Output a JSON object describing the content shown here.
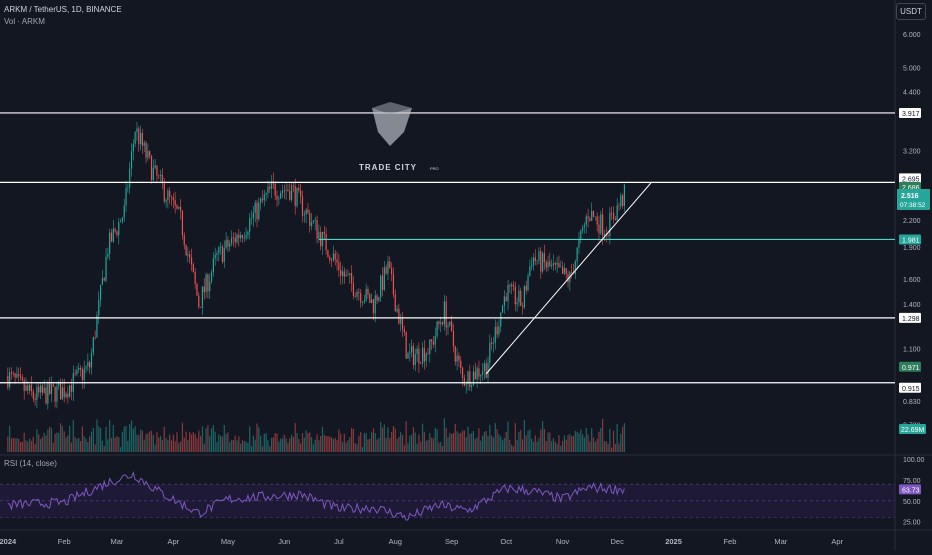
{
  "header": {
    "symbol_line": "ARKM / TetherUS, 1D, BINANCE",
    "volume_label": "Vol · ARKM",
    "currency_button": "USDT"
  },
  "watermark": {
    "brand": "TRADE CITY",
    "brand_suffix": "PRO"
  },
  "price_axis": {
    "scale": "log",
    "tick_labels": [
      "6.000",
      "5.000",
      "4.400",
      "3.200",
      "2.200",
      "1.900",
      "1.600",
      "1.400",
      "1.100",
      "0.830",
      "0.730"
    ],
    "level_labels": [
      {
        "text": "3.917",
        "style": "white"
      },
      {
        "text": "2.695",
        "style": "white"
      },
      {
        "text": "2.686",
        "style": "green"
      },
      {
        "text": "1.981",
        "style": "teal"
      },
      {
        "text": "1.298",
        "style": "white"
      },
      {
        "text": "0.971",
        "style": "green"
      },
      {
        "text": "0.915",
        "style": "white"
      }
    ],
    "last_price": {
      "price": "2.516",
      "countdown": "07:38:52"
    },
    "volume_label": "22.69M"
  },
  "rsi": {
    "label": "RSI (14, close)",
    "tick_labels": [
      "100.00",
      "75.00",
      "50.00",
      "25.00"
    ],
    "value_label": "63.73"
  },
  "time_axis": {
    "labels": [
      "2024",
      "Feb",
      "Mar",
      "Apr",
      "May",
      "Jun",
      "Jul",
      "Aug",
      "Sep",
      "Oct",
      "Nov",
      "Dec",
      "2025",
      "Feb",
      "Mar",
      "Apr"
    ],
    "bold": [
      "2024",
      "2025"
    ]
  },
  "colors": {
    "background": "#131722",
    "up": "#26a69a",
    "down": "#ef5350",
    "level_line": "#ffffff",
    "teal_line": "#4fd1c5",
    "rsi_line": "#7e57c2",
    "rsi_band": "#2a2449"
  },
  "chart_data": {
    "type": "candlestick",
    "y_scale": "log",
    "horizontal_levels": [
      3.917,
      2.695,
      1.981,
      1.298,
      0.915
    ],
    "trendline": {
      "from": {
        "date": "2024-09-20",
        "price": 0.96
      },
      "to": {
        "date": "2024-12-20",
        "price": 2.7
      }
    },
    "price_path": [
      {
        "date": "2024-01-01",
        "price": 0.95
      },
      {
        "date": "2024-01-15",
        "price": 0.85
      },
      {
        "date": "2024-02-01",
        "price": 0.88
      },
      {
        "date": "2024-02-15",
        "price": 1.0
      },
      {
        "date": "2024-02-25",
        "price": 1.9
      },
      {
        "date": "2024-03-05",
        "price": 2.3
      },
      {
        "date": "2024-03-11",
        "price": 3.6
      },
      {
        "date": "2024-03-20",
        "price": 2.9
      },
      {
        "date": "2024-04-05",
        "price": 2.2
      },
      {
        "date": "2024-04-15",
        "price": 1.4
      },
      {
        "date": "2024-04-25",
        "price": 1.8
      },
      {
        "date": "2024-05-10",
        "price": 2.1
      },
      {
        "date": "2024-05-25",
        "price": 2.6
      },
      {
        "date": "2024-06-05",
        "price": 2.6
      },
      {
        "date": "2024-06-20",
        "price": 2.05
      },
      {
        "date": "2024-07-05",
        "price": 1.6
      },
      {
        "date": "2024-07-20",
        "price": 1.4
      },
      {
        "date": "2024-07-28",
        "price": 1.7
      },
      {
        "date": "2024-08-08",
        "price": 1.05
      },
      {
        "date": "2024-08-20",
        "price": 1.1
      },
      {
        "date": "2024-08-28",
        "price": 1.35
      },
      {
        "date": "2024-09-07",
        "price": 0.93
      },
      {
        "date": "2024-09-20",
        "price": 1.0
      },
      {
        "date": "2024-10-01",
        "price": 1.5
      },
      {
        "date": "2024-10-10",
        "price": 1.4
      },
      {
        "date": "2024-10-15",
        "price": 1.8
      },
      {
        "date": "2024-10-25",
        "price": 1.7
      },
      {
        "date": "2024-11-05",
        "price": 1.6
      },
      {
        "date": "2024-11-15",
        "price": 2.3
      },
      {
        "date": "2024-11-25",
        "price": 2.1
      },
      {
        "date": "2024-12-05",
        "price": 2.516
      }
    ],
    "rsi_path": [
      {
        "date": "2024-01-01",
        "value": 45
      },
      {
        "date": "2024-02-01",
        "value": 48
      },
      {
        "date": "2024-02-25",
        "value": 72
      },
      {
        "date": "2024-03-10",
        "value": 82
      },
      {
        "date": "2024-03-25",
        "value": 60
      },
      {
        "date": "2024-04-15",
        "value": 35
      },
      {
        "date": "2024-05-01",
        "value": 52
      },
      {
        "date": "2024-05-20",
        "value": 55
      },
      {
        "date": "2024-06-10",
        "value": 58
      },
      {
        "date": "2024-07-01",
        "value": 40
      },
      {
        "date": "2024-07-20",
        "value": 42
      },
      {
        "date": "2024-08-08",
        "value": 30
      },
      {
        "date": "2024-08-25",
        "value": 45
      },
      {
        "date": "2024-09-10",
        "value": 38
      },
      {
        "date": "2024-10-01",
        "value": 65
      },
      {
        "date": "2024-10-15",
        "value": 62
      },
      {
        "date": "2024-11-01",
        "value": 52
      },
      {
        "date": "2024-11-15",
        "value": 66
      },
      {
        "date": "2024-12-05",
        "value": 63.73
      }
    ],
    "rsi_levels": [
      70,
      50,
      30
    ]
  }
}
